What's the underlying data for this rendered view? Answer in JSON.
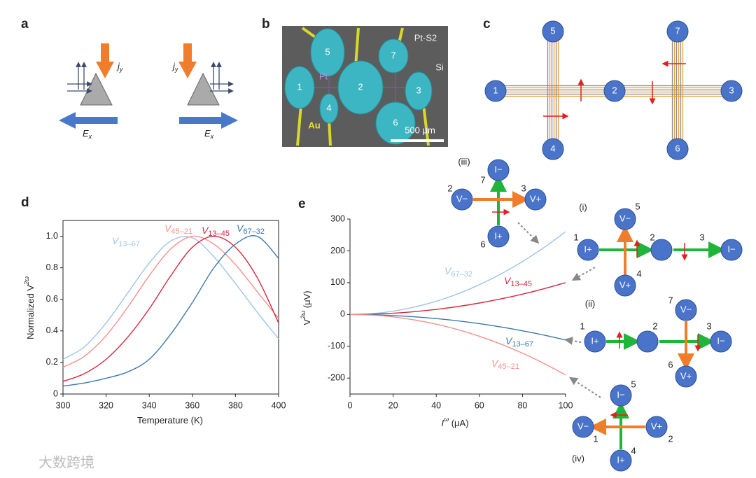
{
  "panel_labels": [
    "a",
    "b",
    "c",
    "d",
    "e"
  ],
  "panel_a": {
    "current": "j",
    "current_sub": "y",
    "field": "E",
    "field_sub": "x"
  },
  "panel_b": {
    "sample": "Pt-S2",
    "substrate": "Si",
    "electrode": "Pt",
    "wire": "Au",
    "scale": "500 μm",
    "pads": [
      "5",
      "1",
      "4",
      "2",
      "7",
      "3",
      "6"
    ]
  },
  "panel_c": {
    "nodes": [
      "1",
      "2",
      "3",
      "4",
      "5",
      "6",
      "7"
    ]
  },
  "insets": [
    {
      "label": "(iii)",
      "nodes": [
        {
          "label": "I−",
          "number": "7"
        },
        {
          "label": "V−",
          "number": "2"
        },
        {
          "label": "V+",
          "number": "3"
        },
        {
          "label": "I+",
          "number": "6"
        }
      ]
    },
    {
      "label": "(i)",
      "nodes": [
        {
          "label": "I+",
          "number": "1"
        },
        {
          "number": "2"
        },
        {
          "label": "I−",
          "number": "3"
        },
        {
          "label": "V−",
          "number": "5"
        },
        {
          "label": "V+",
          "number": "4"
        }
      ]
    },
    {
      "label": "(ii)",
      "nodes": [
        {
          "label": "I+",
          "number": "1"
        },
        {
          "number": "2"
        },
        {
          "label": "I−",
          "number": "3"
        },
        {
          "label": "V−",
          "number": "7"
        },
        {
          "label": "V+",
          "number": "6"
        }
      ]
    },
    {
      "label": "(iv)",
      "nodes": [
        {
          "label": "I−",
          "number": "5"
        },
        {
          "label": "V−",
          "number": "1"
        },
        {
          "label": "V+",
          "number": "2"
        },
        {
          "label": "I+",
          "number": "4"
        }
      ]
    }
  ],
  "watermark": "大数跨境",
  "chart_data": [
    {
      "type": "line",
      "box": true,
      "xlabel": "Temperature (K)",
      "ylabel": "Normalized V",
      "ylabel_sup": "2ω",
      "x": [
        300,
        310,
        320,
        330,
        340,
        350,
        360,
        370,
        380,
        390,
        400
      ],
      "xlim": [
        300,
        400
      ],
      "ylim": [
        0,
        1.1
      ],
      "xticks": [
        300,
        320,
        340,
        360,
        380,
        400
      ],
      "yticks": [
        0,
        0.2,
        0.4,
        0.6,
        0.8,
        {
          "value": 1,
          "label": "1.0"
        }
      ],
      "series": [
        {
          "symbol": "V",
          "name": "13–67",
          "color": "#9ec5e8",
          "values": [
            0.22,
            0.3,
            0.45,
            0.64,
            0.83,
            0.97,
            0.99,
            0.87,
            0.7,
            0.52,
            0.35
          ]
        },
        {
          "symbol": "V",
          "name": "45–21",
          "color": "#f4908a",
          "values": [
            0.17,
            0.24,
            0.37,
            0.55,
            0.75,
            0.92,
            1.0,
            0.95,
            0.82,
            0.65,
            0.48
          ]
        },
        {
          "symbol": "V",
          "name": "13–45",
          "color": "#d7263d",
          "values": [
            0.08,
            0.13,
            0.22,
            0.36,
            0.54,
            0.75,
            0.93,
            1.0,
            0.93,
            0.74,
            0.45
          ]
        },
        {
          "symbol": "V",
          "name": "67–32",
          "color": "#3b78ad",
          "values": [
            0.05,
            0.07,
            0.1,
            0.14,
            0.22,
            0.38,
            0.58,
            0.8,
            0.95,
            1.0,
            0.86
          ]
        }
      ]
    },
    {
      "type": "line",
      "box": false,
      "xlabel": "I",
      "xlabel_sup": "ω",
      "xlabel_unit": " (μA)",
      "ylabel": "V",
      "ylabel_sup": "2ω",
      "ylabel_unit": " (μV)",
      "x": [
        0,
        10,
        20,
        30,
        40,
        50,
        60,
        70,
        80,
        90,
        100
      ],
      "xlim": [
        0,
        100
      ],
      "ylim": [
        -250,
        300
      ],
      "xticks": [
        0,
        20,
        40,
        60,
        80,
        100
      ],
      "yticks": [
        -200,
        -100,
        0,
        100,
        200,
        300
      ],
      "series": [
        {
          "symbol": "V",
          "name": "67–32",
          "color": "#9ec5e8",
          "values": [
            0,
            2.6,
            10.4,
            23.4,
            41.6,
            65,
            93.6,
            127.4,
            166.4,
            210.6,
            260
          ]
        },
        {
          "symbol": "V",
          "name": "13–45",
          "color": "#d7263d",
          "values": [
            0,
            1,
            4,
            9,
            16,
            25,
            36,
            49,
            64,
            81,
            100
          ]
        },
        {
          "symbol": "V",
          "name": "13–67",
          "color": "#3b78ad",
          "values": [
            0,
            -0.8,
            -3.2,
            -7.2,
            -12.8,
            -20,
            -28.8,
            -39.2,
            -51.2,
            -64.8,
            -80
          ]
        },
        {
          "symbol": "V",
          "name": "45–21",
          "color": "#f4908a",
          "values": [
            0,
            -1.9,
            -7.6,
            -17.1,
            -30.4,
            -47.5,
            -68.4,
            -93.1,
            -121.6,
            -153.9,
            -190
          ]
        }
      ]
    }
  ]
}
